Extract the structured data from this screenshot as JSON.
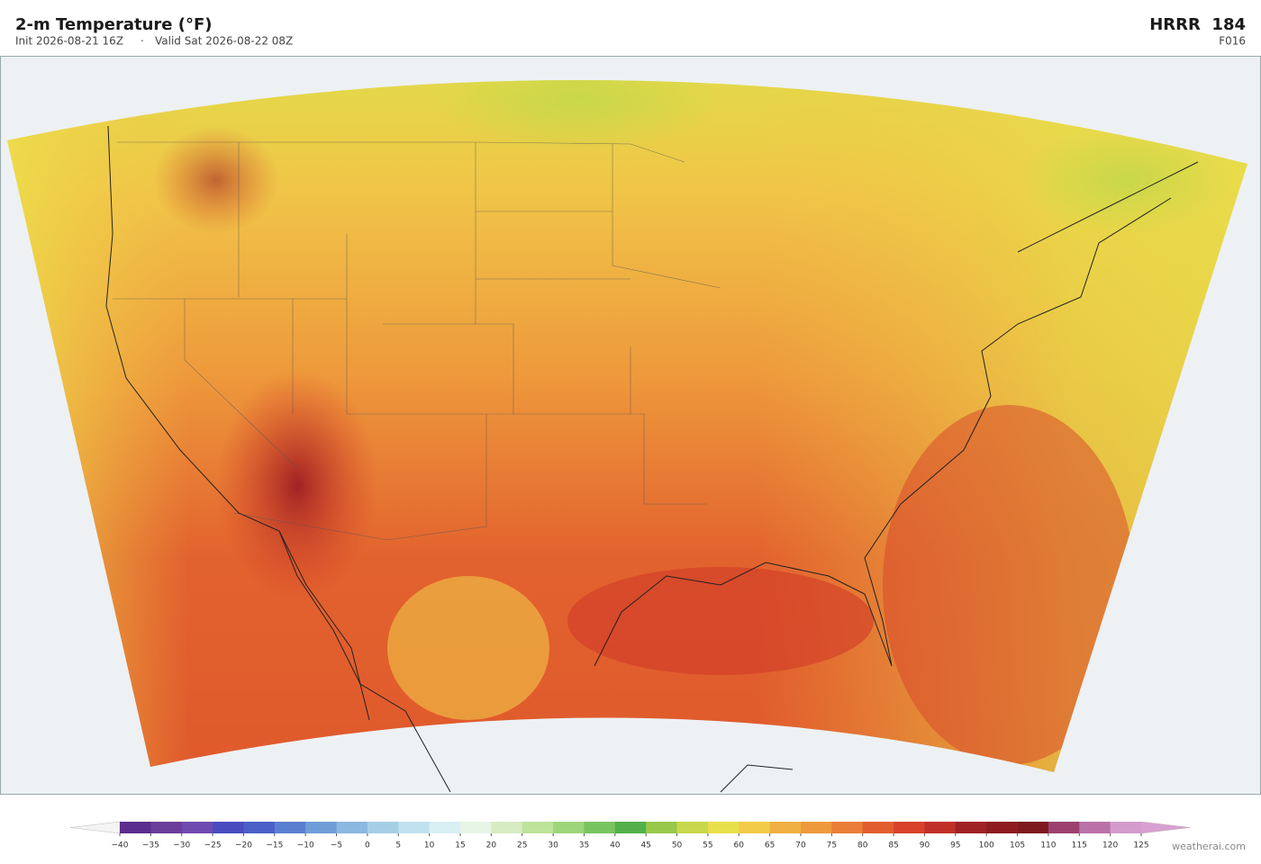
{
  "header": {
    "title": "2-m Temperature  (°F)",
    "init": "Init 2026-08-21 16Z",
    "separator": "·",
    "valid": "Valid Sat 2026-08-22 08Z",
    "model": "HRRR  184",
    "forecast_hour": "F016"
  },
  "colorbar": {
    "ticks": [
      {
        "value": -40,
        "label": "−40"
      },
      {
        "value": -35,
        "label": "−35"
      },
      {
        "value": -30,
        "label": "−30"
      },
      {
        "value": -25,
        "label": "−25"
      },
      {
        "value": -20,
        "label": "−20"
      },
      {
        "value": -15,
        "label": "−15"
      },
      {
        "value": -10,
        "label": "−10"
      },
      {
        "value": -5,
        "label": "−5"
      },
      0,
      5,
      10,
      15,
      20,
      25,
      30,
      35,
      40,
      45,
      50,
      55,
      60,
      65,
      70,
      75,
      80,
      85,
      90,
      95,
      100,
      105,
      110,
      115,
      120,
      125
    ],
    "colors": [
      "#5b2d8e",
      "#6a3d9a",
      "#6f4ab0",
      "#4a4bbf",
      "#4a5fc8",
      "#5a7fd0",
      "#6e9dd8",
      "#8ab8e0",
      "#a6cfe6",
      "#c0e2ee",
      "#d8eff3",
      "#e6f5e6",
      "#d6ecc0",
      "#bde39a",
      "#9dd67a",
      "#78c460",
      "#52b04a",
      "#98c84a",
      "#c8d84a",
      "#e8e04a",
      "#f2cc48",
      "#f0b042",
      "#ee9a3c",
      "#ea7e36",
      "#e25e2e",
      "#d8412a",
      "#c03028",
      "#a02224",
      "#8e1c20",
      "#7e1a1e",
      "#9c4070",
      "#ba72a8",
      "#d49ccc"
    ],
    "under_color": "#f4f4f4",
    "over_color": "#d8a0d0"
  },
  "footer": {
    "credit": "weatherai.com"
  }
}
